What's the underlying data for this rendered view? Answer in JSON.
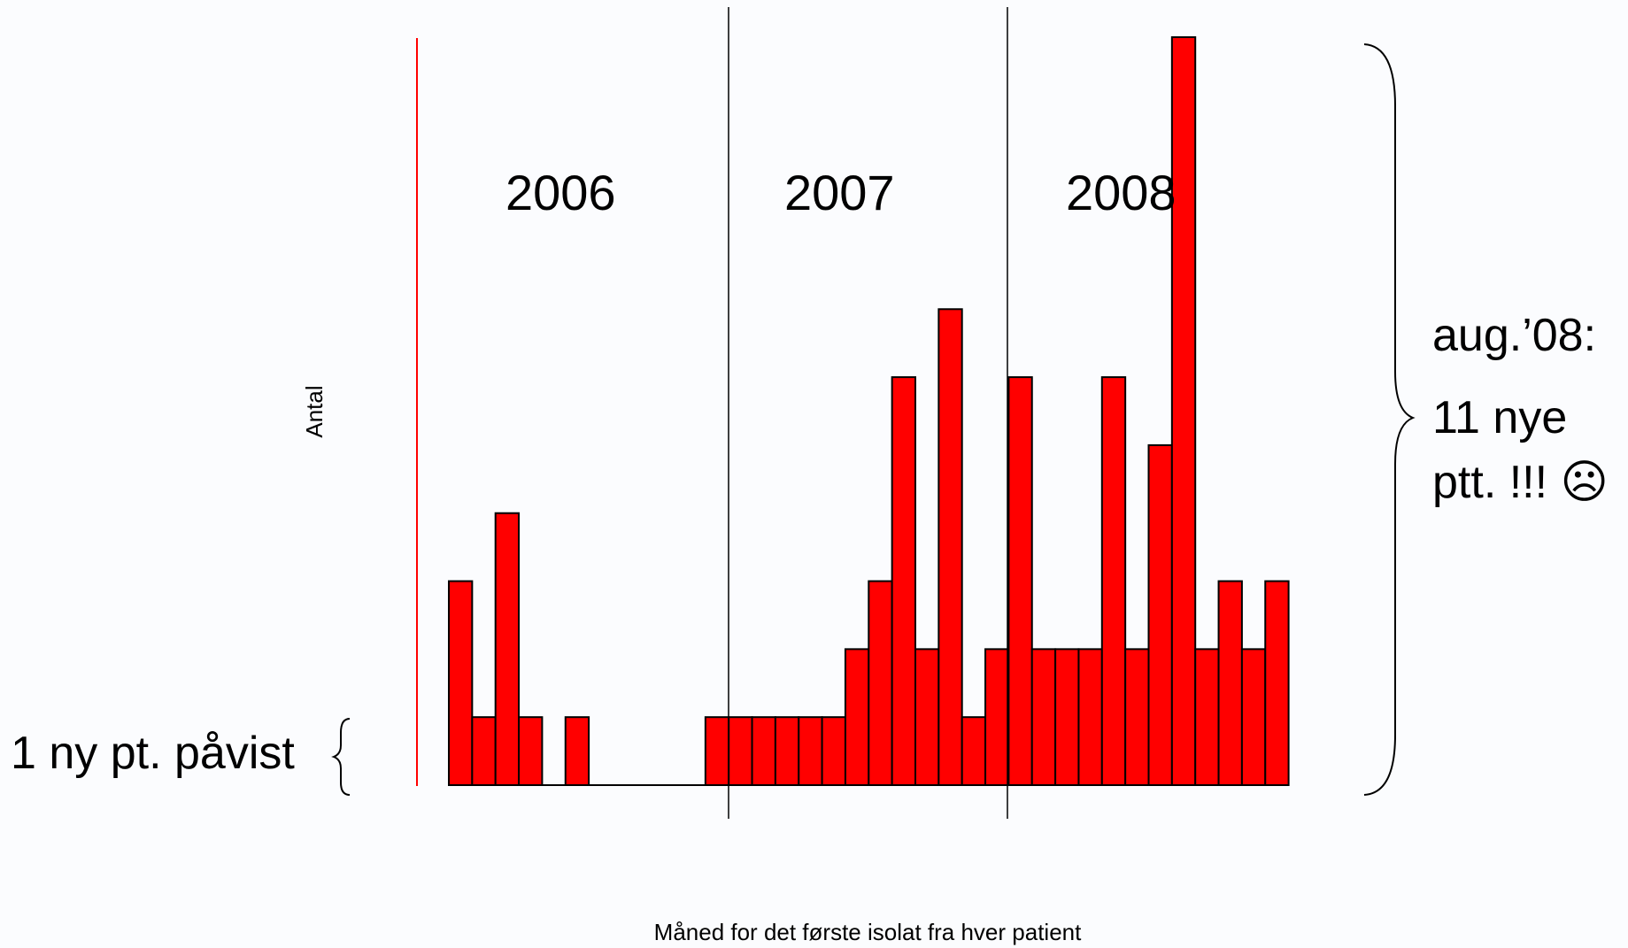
{
  "chart_data": {
    "type": "bar",
    "title": "",
    "xlabel": "Måned for det første isolat fra hver patient",
    "ylabel": "Antal",
    "ylim": [
      0,
      11
    ],
    "bar_color": "#ff0000",
    "bar_stroke": "#000000",
    "axis_color": "#ff0000",
    "divider_color": "#000000",
    "grid": false,
    "values": [
      3,
      1,
      4,
      1,
      0,
      1,
      0,
      0,
      0,
      0,
      0,
      1,
      1,
      1,
      1,
      1,
      1,
      2,
      3,
      6,
      2,
      7,
      1,
      2,
      6,
      2,
      2,
      2,
      6,
      2,
      5,
      11,
      2,
      3,
      2,
      3
    ],
    "year_labels": [
      "2006",
      "2007",
      "2008"
    ],
    "year_dividers_after_index": [
      11,
      23
    ],
    "annotations": {
      "left_note": "1 ny pt. påvist",
      "right_note": [
        "aug.’08:",
        "11 nye",
        "ptt. !!! ☹"
      ]
    }
  }
}
